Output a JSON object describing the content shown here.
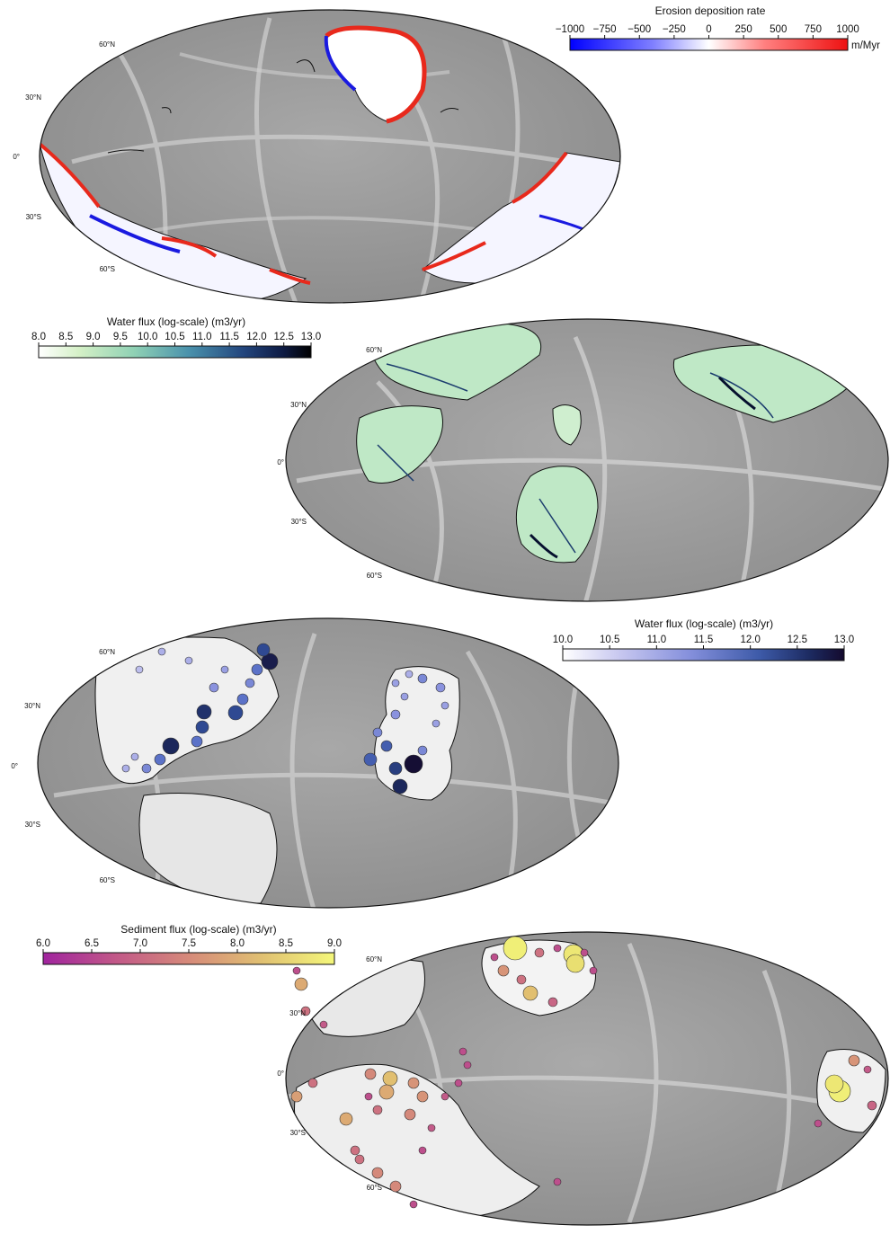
{
  "colors": {
    "land_base": "#f1f1f1",
    "ocean_base": "#9c9c9c",
    "ridge": "#d4d4d4",
    "coast": "#111111"
  },
  "lat_labels": [
    "60°N",
    "30°N",
    "0°",
    "30°S",
    "60°S"
  ],
  "panels": [
    {
      "id": "erosion",
      "colorbar": {
        "title": "Erosion deposition rate",
        "ticks": [
          "−1000",
          "−750",
          "−500",
          "−250",
          "0",
          "250",
          "500",
          "750",
          "1000"
        ],
        "unit": "m/Myr",
        "colormap": [
          "#0000ff",
          "#6a6aff",
          "#c8c8ff",
          "#ffffff",
          "#ffc8c8",
          "#ff6a6a",
          "#ee1111"
        ]
      }
    },
    {
      "id": "water-flux-grid",
      "colorbar": {
        "title": "Water flux (log-scale) (m3/yr)",
        "ticks": [
          "8.0",
          "8.5",
          "9.0",
          "9.5",
          "10.0",
          "10.5",
          "11.0",
          "11.5",
          "12.0",
          "12.5",
          "13.0"
        ],
        "colormap": [
          "#ffffff",
          "#c5ecc8",
          "#7fcbb0",
          "#4fa0ae",
          "#2f6b9e",
          "#1c3b72",
          "#0c1435",
          "#000000"
        ]
      }
    },
    {
      "id": "water-flux-outlets",
      "colorbar": {
        "title": "Water flux (log-scale) (m3/yr)",
        "ticks": [
          "10.0",
          "10.5",
          "11.0",
          "11.5",
          "12.0",
          "12.5",
          "13.0"
        ],
        "colormap": [
          "#ffffff",
          "#c8c8f0",
          "#8f96e0",
          "#5b72c8",
          "#34519e",
          "#1c2a60",
          "#140a2e"
        ]
      }
    },
    {
      "id": "sediment-flux-outlets",
      "colorbar": {
        "title": "Sediment flux (log-scale) (m3/yr)",
        "ticks": [
          "6.0",
          "6.5",
          "7.0",
          "7.5",
          "8.0",
          "8.5",
          "9.0"
        ],
        "colormap": [
          "#a0249e",
          "#b9478f",
          "#cc6e82",
          "#d79478",
          "#dfb870",
          "#e8dc70",
          "#f4f77a"
        ]
      }
    }
  ]
}
